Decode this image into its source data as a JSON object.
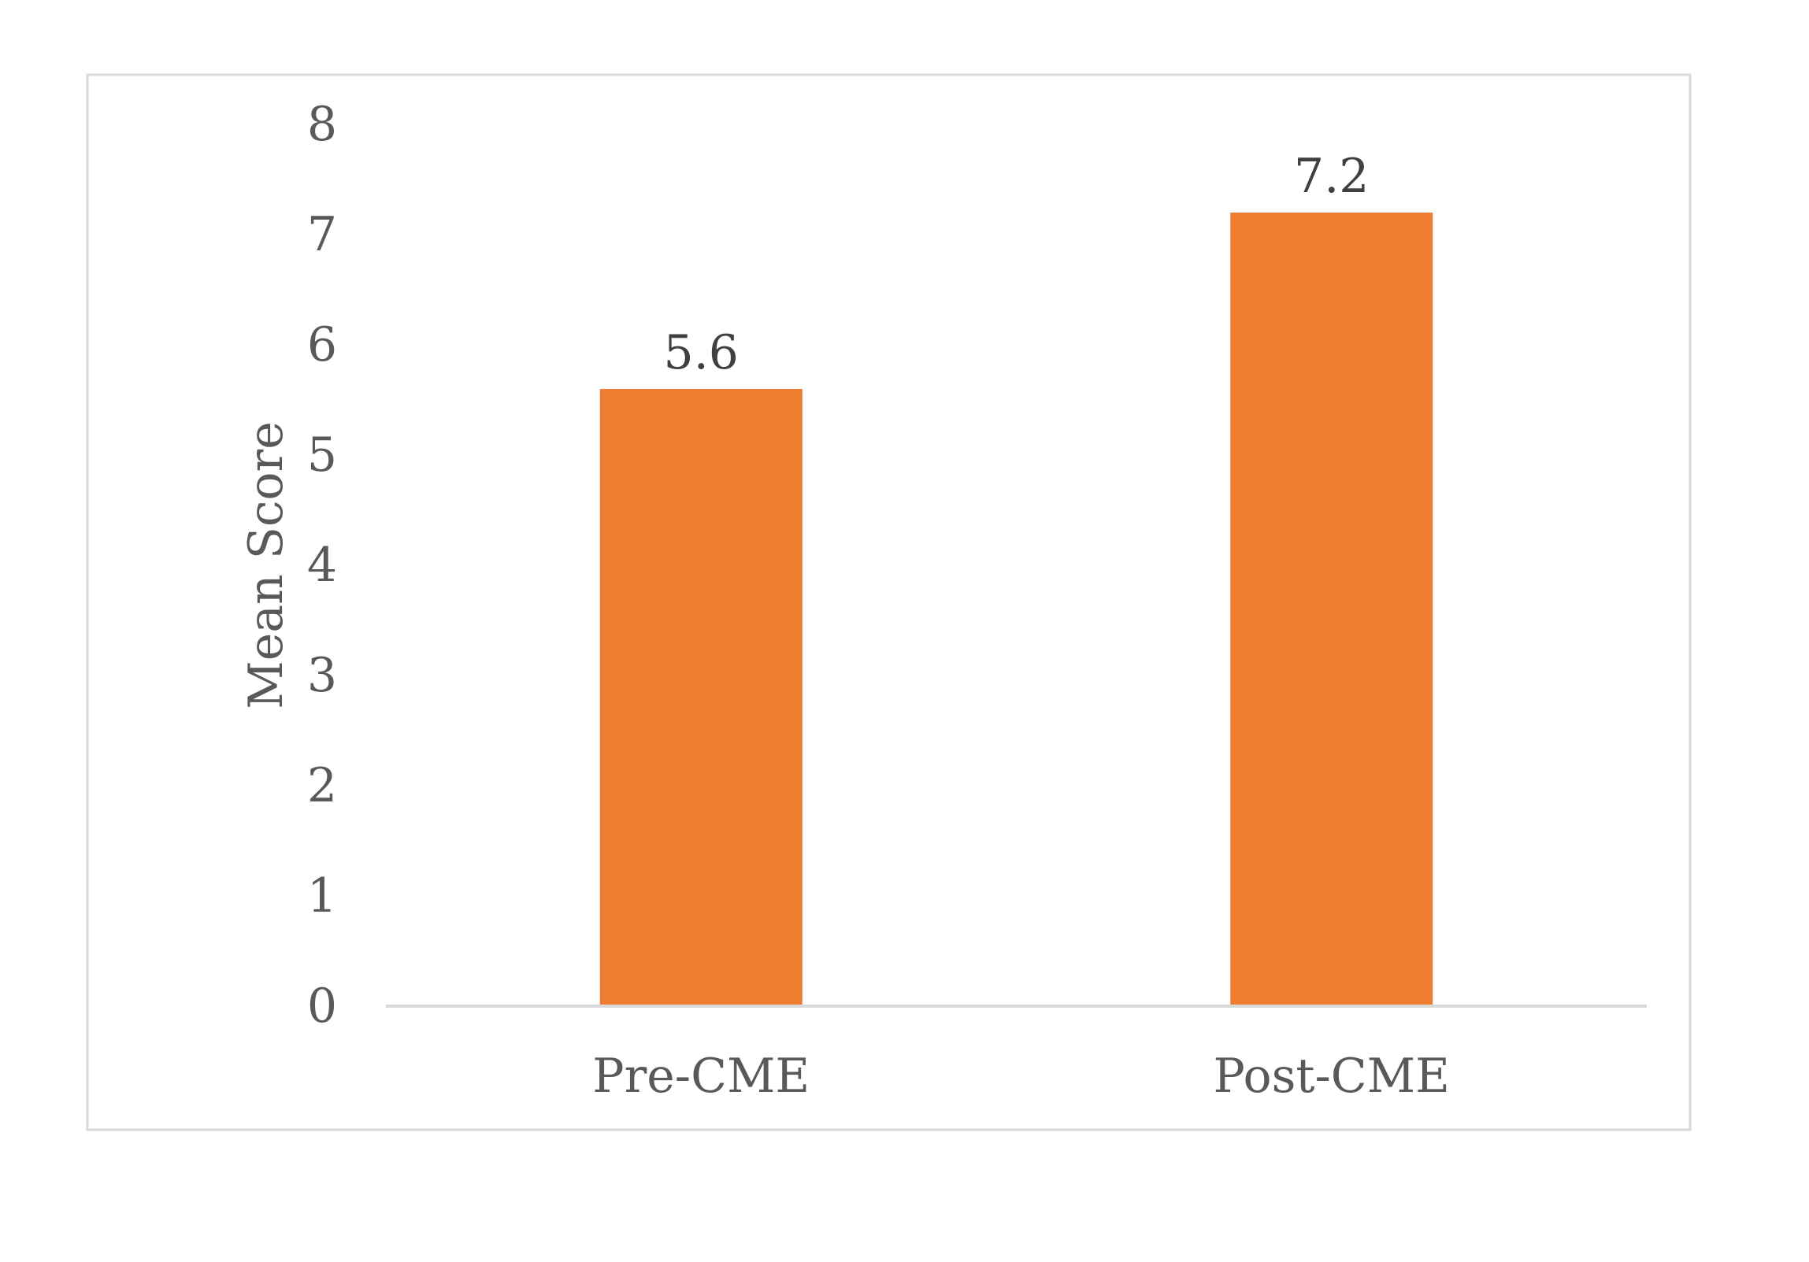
{
  "chart_data": {
    "type": "bar",
    "title": "",
    "xlabel": "",
    "ylabel": "Mean Score",
    "categories": [
      "Pre-CME",
      "Post-CME"
    ],
    "series": [
      {
        "values": [
          5.6,
          7.2
        ],
        "data_labels": [
          "5.6",
          "7.2"
        ]
      }
    ],
    "ylim": [
      0,
      8
    ],
    "yticks": [
      "0",
      "1",
      "2",
      "3",
      "4",
      "5",
      "6",
      "7",
      "8"
    ],
    "grid": false,
    "legend": "none",
    "colors": {
      "bar": "#ED7D31",
      "axis_text": "#595959",
      "data_label": "#404040",
      "baseline": "#D9D9D9",
      "border": "#D9D9D9"
    }
  }
}
